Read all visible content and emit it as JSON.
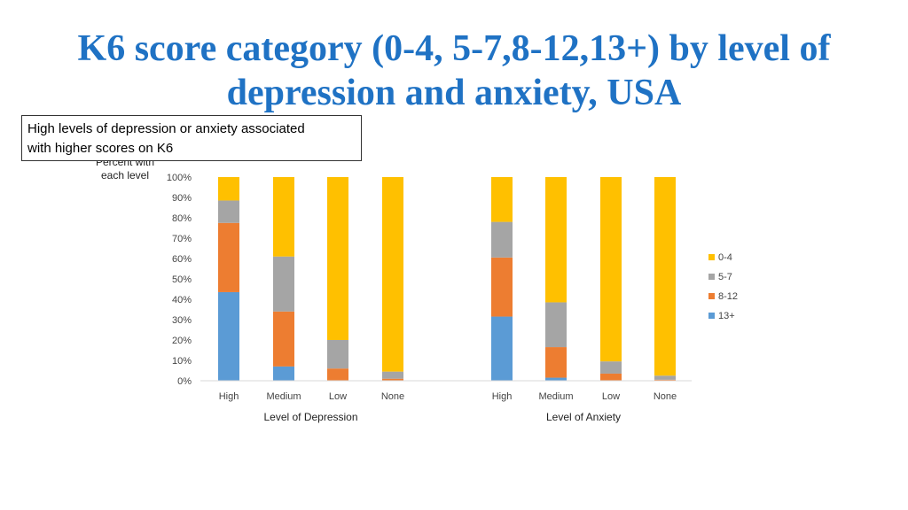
{
  "title": {
    "line1": "K6 score category (0-4, 5-7,8-12,13+) by level of",
    "line2": "depression and anxiety, USA"
  },
  "callout": {
    "line1": "High levels of depression or anxiety associated",
    "line2": "with higher scores on K6"
  },
  "colors": {
    "0-4": "#ffc000",
    "5-7": "#a5a5a5",
    "8-12": "#ed7d31",
    "13+": "#5b9bd5"
  },
  "chart_data": {
    "type": "bar",
    "stacked": true,
    "ylabel_lines": [
      "Percent with",
      "each level"
    ],
    "ylim": [
      0,
      100
    ],
    "yticks": [
      "0%",
      "10%",
      "20%",
      "30%",
      "40%",
      "50%",
      "60%",
      "70%",
      "80%",
      "90%",
      "100%"
    ],
    "groups": [
      {
        "label": "Level of Depression",
        "categories": [
          "High",
          "Medium",
          "Low",
          "None"
        ]
      },
      {
        "label": "Level of Anxiety",
        "categories": [
          "High",
          "Medium",
          "Low",
          "None"
        ]
      }
    ],
    "series": [
      {
        "name": "13+",
        "values": [
          43.5,
          7,
          0,
          0,
          31.5,
          1.5,
          0,
          0
        ]
      },
      {
        "name": "8-12",
        "values": [
          34,
          27,
          6,
          1,
          29,
          15,
          3.5,
          0.5
        ]
      },
      {
        "name": "5-7",
        "values": [
          11,
          27,
          14,
          3.5,
          17.5,
          22,
          6,
          2
        ]
      },
      {
        "name": "0-4",
        "values": [
          11.5,
          39,
          80,
          95.5,
          22,
          61.5,
          90.5,
          97.5
        ]
      }
    ],
    "legend": {
      "position": "right",
      "order": [
        "0-4",
        "5-7",
        "8-12",
        "13+"
      ]
    },
    "grid": false
  }
}
